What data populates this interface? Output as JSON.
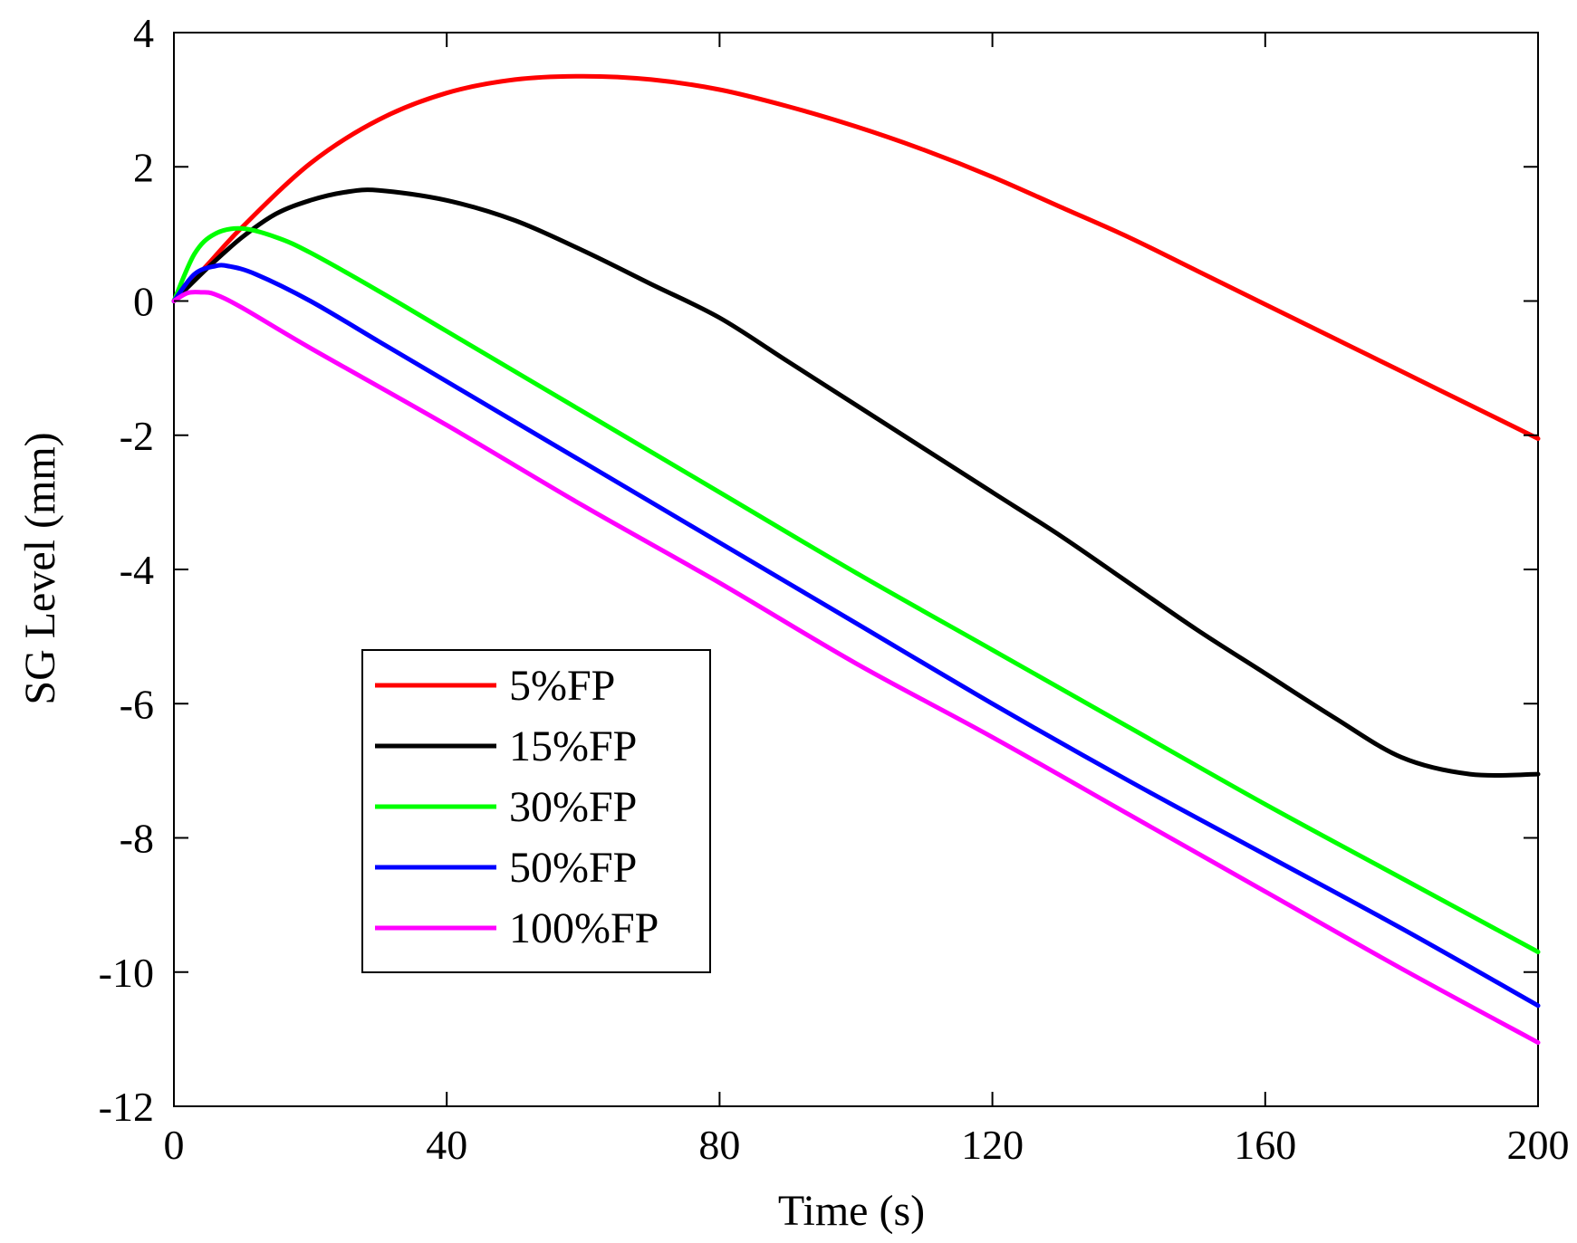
{
  "chart_data": {
    "type": "line",
    "title": "",
    "xlabel": "Time (s)",
    "ylabel": "SG Level (mm)",
    "xlim": [
      0,
      200
    ],
    "ylim": [
      -12,
      4
    ],
    "xticks": [
      0,
      40,
      80,
      120,
      160,
      200
    ],
    "yticks": [
      4,
      2,
      0,
      -2,
      -4,
      -6,
      -8,
      -10,
      -12
    ],
    "grid": false,
    "legend_position": "center-left",
    "series": [
      {
        "name": "5%FP",
        "color": "#ff0000",
        "x": [
          0,
          5,
          10,
          20,
          30,
          40,
          50,
          60,
          70,
          80,
          90,
          100,
          110,
          120,
          130,
          140,
          150,
          160,
          170,
          180,
          190,
          200
        ],
        "y": [
          0,
          0.55,
          1.1,
          2.05,
          2.7,
          3.1,
          3.3,
          3.35,
          3.3,
          3.15,
          2.9,
          2.6,
          2.25,
          1.85,
          1.4,
          0.95,
          0.45,
          -0.05,
          -0.55,
          -1.05,
          -1.55,
          -2.05
        ]
      },
      {
        "name": "15%FP",
        "color": "#000000",
        "x": [
          0,
          5,
          10,
          15,
          20,
          25,
          30,
          40,
          50,
          60,
          70,
          80,
          90,
          100,
          110,
          120,
          130,
          140,
          150,
          160,
          170,
          180,
          190,
          200
        ],
        "y": [
          0,
          0.5,
          0.95,
          1.3,
          1.5,
          1.62,
          1.65,
          1.5,
          1.2,
          0.75,
          0.25,
          -0.25,
          -0.9,
          -1.55,
          -2.2,
          -2.85,
          -3.5,
          -4.2,
          -4.9,
          -5.55,
          -6.2,
          -6.8,
          -7.05,
          -7.05
        ]
      },
      {
        "name": "30%FP",
        "color": "#00ff00",
        "x": [
          0,
          3,
          6,
          10,
          15,
          20,
          30,
          40,
          60,
          80,
          100,
          120,
          140,
          160,
          180,
          200
        ],
        "y": [
          0,
          0.7,
          1.0,
          1.08,
          0.95,
          0.72,
          0.15,
          -0.45,
          -1.65,
          -2.85,
          -4.05,
          -5.2,
          -6.35,
          -7.5,
          -8.6,
          -9.7
        ]
      },
      {
        "name": "50%FP",
        "color": "#0000ff",
        "x": [
          0,
          3,
          6,
          8,
          12,
          20,
          30,
          40,
          60,
          80,
          100,
          120,
          140,
          160,
          180,
          200
        ],
        "y": [
          0,
          0.4,
          0.52,
          0.52,
          0.4,
          0.0,
          -0.6,
          -1.2,
          -2.4,
          -3.6,
          -4.8,
          -6.0,
          -7.15,
          -8.25,
          -9.35,
          -10.5
        ]
      },
      {
        "name": "100%FP",
        "color": "#ff00ff",
        "x": [
          0,
          2,
          4,
          6,
          10,
          20,
          40,
          60,
          80,
          100,
          120,
          140,
          160,
          180,
          200
        ],
        "y": [
          0,
          0.12,
          0.13,
          0.1,
          -0.1,
          -0.7,
          -1.85,
          -3.05,
          -4.2,
          -5.4,
          -6.5,
          -7.65,
          -8.8,
          -9.95,
          -11.05
        ]
      }
    ]
  }
}
